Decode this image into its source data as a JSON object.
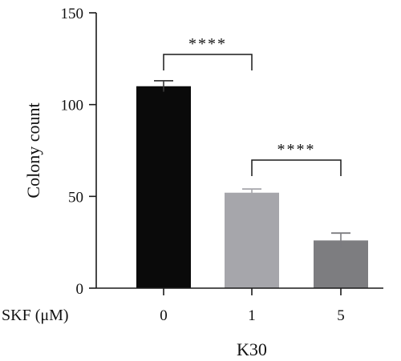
{
  "chart_data": {
    "type": "bar",
    "title": "",
    "xlabel": "K30",
    "ylabel": "Colony count",
    "row_label": "SKF (μM)",
    "categories": [
      "0",
      "1",
      "5"
    ],
    "values": [
      110,
      52,
      26
    ],
    "errors": [
      3,
      2,
      4
    ],
    "colors": [
      "#0a0a0a",
      "#a6a6ab",
      "#7d7d80"
    ],
    "ylim": [
      0,
      150
    ],
    "yticks": [
      "0",
      "50",
      "100",
      "150"
    ],
    "grid": false,
    "legend": "none",
    "significance": [
      {
        "from": 0,
        "to": 1,
        "label": "****"
      },
      {
        "from": 1,
        "to": 2,
        "label": "****"
      }
    ]
  }
}
